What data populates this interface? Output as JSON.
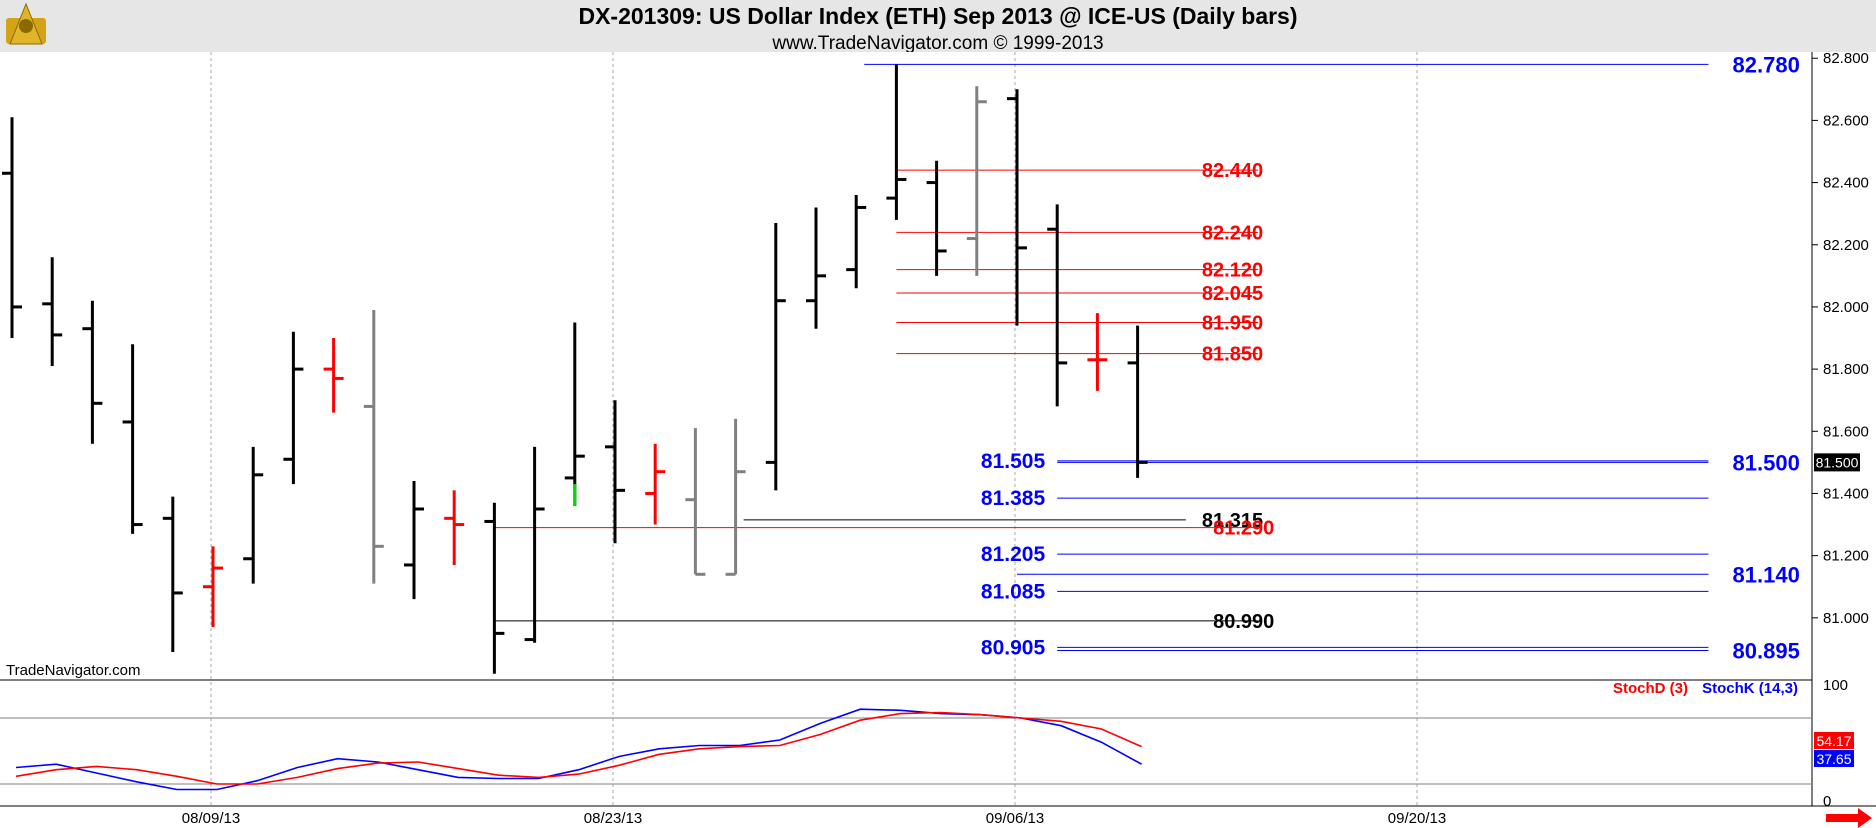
{
  "header": {
    "title": "DX-201309:  US Dollar Index (ETH) Sep 2013 @ ICE-US  (Daily bars)",
    "subtitle": "www.TradeNavigator.com © 1999-2013"
  },
  "watermark": "TradeNavigator.com",
  "colors": {
    "bar_default": "#000000",
    "bar_red": "#ff0000",
    "bar_gray": "#808080",
    "bar_green": "#00dd00",
    "level_red": "#ff0000",
    "level_blue": "#0000ff",
    "level_black": "#000000",
    "stoch_k": "#0000ff",
    "stoch_d": "#ff0000"
  },
  "chart_data": {
    "type": "ohlc",
    "price_axis": {
      "ylim": [
        80.8,
        82.82
      ],
      "ticks": [
        "82.800",
        "82.600",
        "82.400",
        "82.200",
        "82.000",
        "81.800",
        "81.600",
        "81.400",
        "81.200",
        "81.000"
      ],
      "last_price": "81.500"
    },
    "date_axis": {
      "ticks": [
        {
          "label": "08/09/13",
          "index": 5
        },
        {
          "label": "08/23/13",
          "index": 15
        },
        {
          "label": "09/06/13",
          "index": 25
        },
        {
          "label": "09/20/13",
          "index": 35
        }
      ]
    },
    "bars": [
      {
        "o": 82.43,
        "h": 82.61,
        "l": 81.9,
        "c": 82.0,
        "color": "black"
      },
      {
        "o": 82.01,
        "h": 82.16,
        "l": 81.81,
        "c": 81.91,
        "color": "black"
      },
      {
        "o": 81.93,
        "h": 82.02,
        "l": 81.56,
        "c": 81.69,
        "color": "black"
      },
      {
        "o": 81.63,
        "h": 81.88,
        "l": 81.27,
        "c": 81.3,
        "color": "black"
      },
      {
        "o": 81.32,
        "h": 81.39,
        "l": 80.89,
        "c": 81.08,
        "color": "black"
      },
      {
        "o": 81.1,
        "h": 81.23,
        "l": 80.97,
        "c": 81.16,
        "color": "red"
      },
      {
        "o": 81.19,
        "h": 81.55,
        "l": 81.11,
        "c": 81.46,
        "color": "black"
      },
      {
        "o": 81.51,
        "h": 81.92,
        "l": 81.43,
        "c": 81.8,
        "color": "black"
      },
      {
        "o": 81.8,
        "h": 81.9,
        "l": 81.66,
        "c": 81.77,
        "color": "red"
      },
      {
        "o": 81.68,
        "h": 81.99,
        "l": 81.11,
        "c": 81.23,
        "color": "gray"
      },
      {
        "o": 81.17,
        "h": 81.44,
        "l": 81.06,
        "c": 81.35,
        "color": "black"
      },
      {
        "o": 81.32,
        "h": 81.41,
        "l": 81.17,
        "c": 81.3,
        "color": "red"
      },
      {
        "o": 81.31,
        "h": 81.37,
        "l": 80.82,
        "c": 80.95,
        "color": "black"
      },
      {
        "o": 80.93,
        "h": 81.55,
        "l": 80.92,
        "c": 81.35,
        "color": "black"
      },
      {
        "o": 81.45,
        "h": 81.95,
        "l": 81.36,
        "c": 81.52,
        "color": "black",
        "low_color": "green"
      },
      {
        "o": 81.55,
        "h": 81.7,
        "l": 81.24,
        "c": 81.41,
        "color": "black"
      },
      {
        "o": 81.4,
        "h": 81.56,
        "l": 81.3,
        "c": 81.47,
        "color": "red"
      },
      {
        "o": 81.38,
        "h": 81.61,
        "l": 81.14,
        "c": 81.14,
        "color": "gray"
      },
      {
        "o": 81.14,
        "h": 81.64,
        "l": 81.14,
        "c": 81.47,
        "color": "gray"
      },
      {
        "o": 81.5,
        "h": 82.27,
        "l": 81.41,
        "c": 82.02,
        "color": "black"
      },
      {
        "o": 82.02,
        "h": 82.32,
        "l": 81.93,
        "c": 82.1,
        "color": "black"
      },
      {
        "o": 82.12,
        "h": 82.36,
        "l": 82.06,
        "c": 82.32,
        "color": "black"
      },
      {
        "o": 82.35,
        "h": 82.78,
        "l": 82.28,
        "c": 82.41,
        "color": "black"
      },
      {
        "o": 82.4,
        "h": 82.47,
        "l": 82.1,
        "c": 82.18,
        "color": "black"
      },
      {
        "o": 82.22,
        "h": 82.71,
        "l": 82.1,
        "c": 82.66,
        "color": "gray"
      },
      {
        "o": 82.67,
        "h": 82.7,
        "l": 81.94,
        "c": 82.19,
        "color": "black"
      },
      {
        "o": 82.25,
        "h": 82.33,
        "l": 81.68,
        "c": 81.82,
        "color": "black"
      },
      {
        "o": 81.83,
        "h": 81.98,
        "l": 81.73,
        "c": 81.83,
        "color": "red"
      },
      {
        "o": 81.82,
        "h": 81.94,
        "l": 81.45,
        "c": 81.5,
        "color": "black"
      }
    ],
    "levels": [
      {
        "value": 82.78,
        "label": "82.780",
        "color": "blue",
        "from": 21.2,
        "to": 42.2,
        "label_pos": "right"
      },
      {
        "value": 82.44,
        "label": "82.440",
        "color": "red",
        "from": 22.0,
        "to": 31.0,
        "label_pos": "mid"
      },
      {
        "value": 82.24,
        "label": "82.240",
        "color": "red",
        "from": 22.0,
        "to": 31.0,
        "label_pos": "mid"
      },
      {
        "value": 82.12,
        "label": "82.120",
        "color": "red",
        "from": 22.0,
        "to": 31.0,
        "label_pos": "mid"
      },
      {
        "value": 82.045,
        "label": "82.045",
        "color": "red",
        "from": 22.0,
        "to": 31.0,
        "label_pos": "mid"
      },
      {
        "value": 81.95,
        "label": "81.950",
        "color": "red",
        "from": 22.0,
        "to": 31.0,
        "label_pos": "mid"
      },
      {
        "value": 81.85,
        "label": "81.850",
        "color": "red",
        "from": 22.0,
        "to": 31.0,
        "label_pos": "mid"
      },
      {
        "value": 81.505,
        "label": "81.505",
        "color": "blue",
        "from": 26.0,
        "to": 42.2,
        "label_pos": "left"
      },
      {
        "value": 81.5,
        "label": "81.500",
        "color": "blue",
        "from": 26.0,
        "to": 42.2,
        "label_pos": "right"
      },
      {
        "value": 81.385,
        "label": "81.385",
        "color": "blue",
        "from": 26.0,
        "to": 42.2,
        "label_pos": "left"
      },
      {
        "value": 81.315,
        "label": "81.315",
        "color": "black",
        "from": 18.2,
        "to": 29.2,
        "label_pos": "mid"
      },
      {
        "value": 81.29,
        "label": "81.290",
        "color": "red",
        "from": 12.0,
        "to": 31.0,
        "label_pos": "far"
      },
      {
        "value": 81.205,
        "label": "81.205",
        "color": "blue",
        "from": 26.0,
        "to": 42.2,
        "label_pos": "left"
      },
      {
        "value": 81.14,
        "label": "81.140",
        "color": "blue",
        "from": 25.0,
        "to": 42.2,
        "label_pos": "right"
      },
      {
        "value": 81.085,
        "label": "81.085",
        "color": "blue",
        "from": 26.0,
        "to": 42.2,
        "label_pos": "left"
      },
      {
        "value": 80.99,
        "label": "80.990",
        "color": "black",
        "from": 12.0,
        "to": 31.0,
        "label_pos": "far"
      },
      {
        "value": 80.905,
        "label": "80.905",
        "color": "blue",
        "from": 26.0,
        "to": 42.2,
        "label_pos": "left"
      },
      {
        "value": 80.895,
        "label": "80.895",
        "color": "blue",
        "from": 26.0,
        "to": 42.2,
        "label_pos": "right"
      }
    ],
    "stochastic": {
      "ylim": [
        0,
        100
      ],
      "ticks": [
        "100",
        "0"
      ],
      "bands": [
        80,
        20
      ],
      "d_label": "StochD (3)",
      "k_label": "StochK (14,3)",
      "d_value": "54.17",
      "k_value": "37.65",
      "k_values": [
        35,
        38,
        30,
        22,
        15,
        15,
        23,
        35,
        43,
        40,
        33,
        26,
        25,
        25,
        33,
        45,
        52,
        55,
        55,
        60,
        75,
        88,
        87,
        84,
        83,
        80,
        73,
        58,
        38
      ],
      "d_values": [
        27,
        33,
        36,
        33,
        27,
        20,
        20,
        26,
        34,
        39,
        40,
        34,
        28,
        26,
        29,
        37,
        47,
        52,
        54,
        55,
        65,
        78,
        84,
        85,
        83,
        80,
        77,
        70,
        54
      ]
    }
  }
}
